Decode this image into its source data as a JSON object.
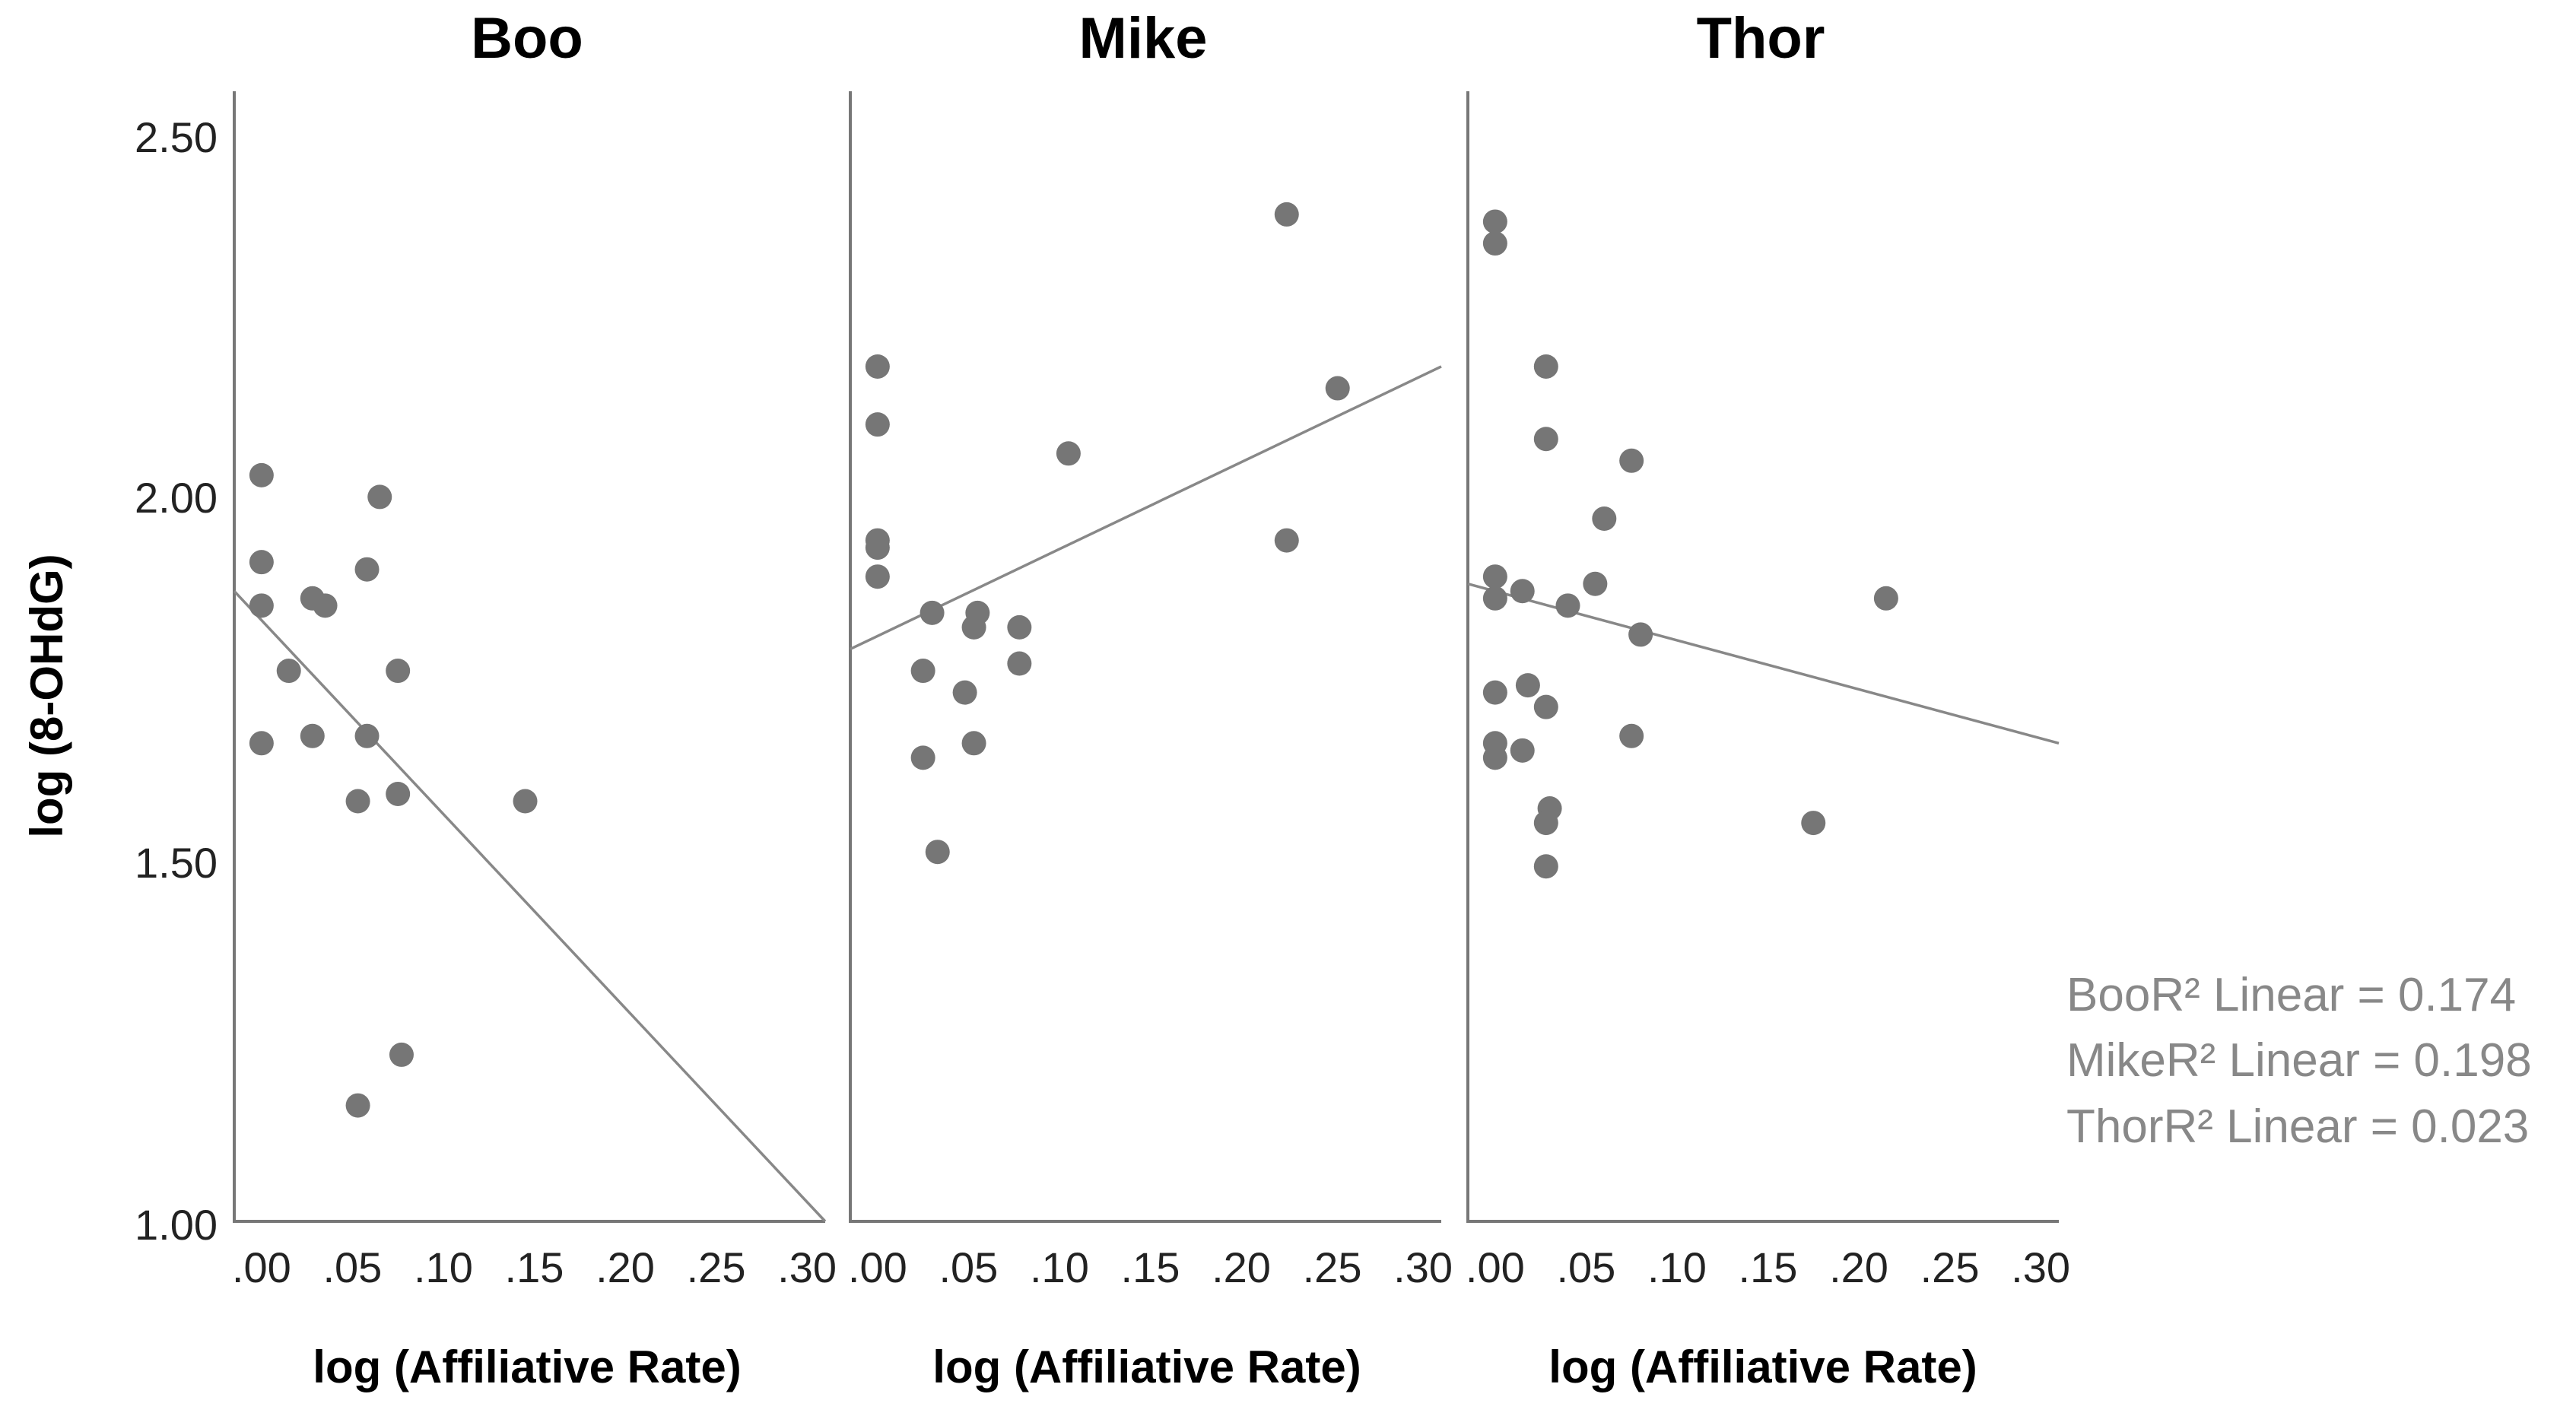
{
  "chart_data": {
    "type": "scatter",
    "y_axis_label": "log (8-OHdG)",
    "y_ticks": [
      "2.50",
      "2.00",
      "1.50",
      "1.00"
    ],
    "ylim": [
      1.0,
      2.56
    ],
    "xlim": [
      -0.015,
      0.31
    ],
    "x_ticks": [
      ".00",
      ".05",
      ".10",
      ".15",
      ".20",
      ".25",
      ".30"
    ],
    "legend": [
      {
        "name": "Boo",
        "label": "R² Linear = 0.174"
      },
      {
        "name": "Mike",
        "label": "R² Linear = 0.198"
      },
      {
        "name": "Thor",
        "label": "R² Linear = 0.023"
      }
    ],
    "panels": [
      {
        "title": "Boo",
        "xlabel": "log (Affiliative Rate)",
        "fit": {
          "x": [
            -0.015,
            0.31
          ],
          "y": [
            1.87,
            1.0
          ]
        },
        "points": [
          {
            "x": 0.0,
            "y": 2.03
          },
          {
            "x": 0.0,
            "y": 1.91
          },
          {
            "x": 0.0,
            "y": 1.85
          },
          {
            "x": 0.0,
            "y": 1.66
          },
          {
            "x": 0.015,
            "y": 1.76
          },
          {
            "x": 0.028,
            "y": 1.86
          },
          {
            "x": 0.035,
            "y": 1.85
          },
          {
            "x": 0.028,
            "y": 1.67
          },
          {
            "x": 0.058,
            "y": 1.9
          },
          {
            "x": 0.065,
            "y": 2.0
          },
          {
            "x": 0.058,
            "y": 1.67
          },
          {
            "x": 0.053,
            "y": 1.58
          },
          {
            "x": 0.075,
            "y": 1.76
          },
          {
            "x": 0.075,
            "y": 1.59
          },
          {
            "x": 0.145,
            "y": 1.58
          },
          {
            "x": 0.077,
            "y": 1.23
          },
          {
            "x": 0.053,
            "y": 1.16
          }
        ]
      },
      {
        "title": "Mike",
        "xlabel": "log (Affiliative Rate)",
        "fit": {
          "x": [
            -0.015,
            0.31
          ],
          "y": [
            1.79,
            2.18
          ]
        },
        "points": [
          {
            "x": 0.0,
            "y": 2.18
          },
          {
            "x": 0.0,
            "y": 2.1
          },
          {
            "x": 0.0,
            "y": 1.94
          },
          {
            "x": 0.0,
            "y": 1.93
          },
          {
            "x": 0.0,
            "y": 1.89
          },
          {
            "x": 0.03,
            "y": 1.84
          },
          {
            "x": 0.055,
            "y": 1.84
          },
          {
            "x": 0.053,
            "y": 1.82
          },
          {
            "x": 0.078,
            "y": 1.82
          },
          {
            "x": 0.025,
            "y": 1.76
          },
          {
            "x": 0.078,
            "y": 1.77
          },
          {
            "x": 0.048,
            "y": 1.73
          },
          {
            "x": 0.053,
            "y": 1.66
          },
          {
            "x": 0.025,
            "y": 1.64
          },
          {
            "x": 0.033,
            "y": 1.51
          },
          {
            "x": 0.105,
            "y": 2.06
          },
          {
            "x": 0.225,
            "y": 2.39
          },
          {
            "x": 0.253,
            "y": 2.15
          },
          {
            "x": 0.225,
            "y": 1.94
          }
        ]
      },
      {
        "title": "Thor",
        "xlabel": "log (Affiliative Rate)",
        "fit": {
          "x": [
            -0.015,
            0.31
          ],
          "y": [
            1.88,
            1.66
          ]
        },
        "points": [
          {
            "x": 0.0,
            "y": 2.38
          },
          {
            "x": 0.0,
            "y": 2.35
          },
          {
            "x": 0.028,
            "y": 2.18
          },
          {
            "x": 0.028,
            "y": 2.08
          },
          {
            "x": 0.075,
            "y": 2.05
          },
          {
            "x": 0.06,
            "y": 1.97
          },
          {
            "x": 0.0,
            "y": 1.89
          },
          {
            "x": 0.0,
            "y": 1.86
          },
          {
            "x": 0.015,
            "y": 1.87
          },
          {
            "x": 0.055,
            "y": 1.88
          },
          {
            "x": 0.04,
            "y": 1.85
          },
          {
            "x": 0.08,
            "y": 1.81
          },
          {
            "x": 0.0,
            "y": 1.73
          },
          {
            "x": 0.018,
            "y": 1.74
          },
          {
            "x": 0.028,
            "y": 1.71
          },
          {
            "x": 0.0,
            "y": 1.66
          },
          {
            "x": 0.0,
            "y": 1.64
          },
          {
            "x": 0.015,
            "y": 1.65
          },
          {
            "x": 0.075,
            "y": 1.67
          },
          {
            "x": 0.03,
            "y": 1.57
          },
          {
            "x": 0.028,
            "y": 1.55
          },
          {
            "x": 0.028,
            "y": 1.49
          },
          {
            "x": 0.175,
            "y": 1.55
          },
          {
            "x": 0.215,
            "y": 1.86
          }
        ]
      }
    ]
  }
}
